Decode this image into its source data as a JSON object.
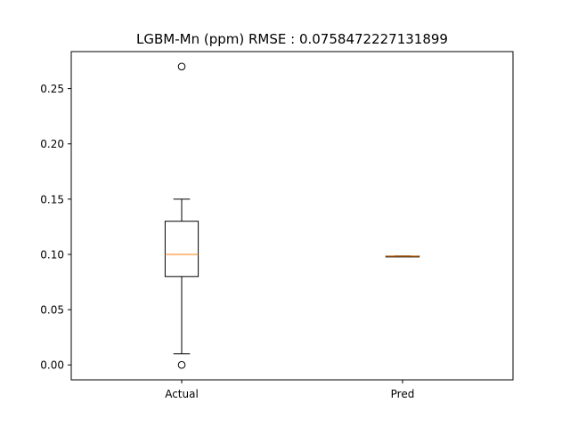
{
  "chart_data": {
    "type": "box",
    "title": "LGBM-Mn (ppm) RMSE : 0.0758472227131899",
    "xlabel": "",
    "ylabel": "",
    "categories": [
      "Actual",
      "Pred"
    ],
    "ylim": [
      -0.0135,
      0.2835
    ],
    "yticks": [
      0.0,
      0.05,
      0.1,
      0.15,
      0.2,
      0.25
    ],
    "ytick_labels": [
      "0.00",
      "0.05",
      "0.10",
      "0.15",
      "0.20",
      "0.25"
    ],
    "grid": false,
    "boxes": [
      {
        "name": "Actual",
        "whisker_low": 0.01,
        "q1": 0.08,
        "median": 0.1,
        "q3": 0.13,
        "whisker_high": 0.15,
        "outliers": [
          0.27,
          0.0
        ]
      },
      {
        "name": "Pred",
        "whisker_low": 0.0983,
        "q1": 0.0983,
        "median": 0.0984,
        "q3": 0.0985,
        "whisker_high": 0.0986,
        "outliers": []
      }
    ],
    "colors": {
      "box": "#000000",
      "median": "#ff7f0e",
      "axes": "#000000"
    }
  }
}
